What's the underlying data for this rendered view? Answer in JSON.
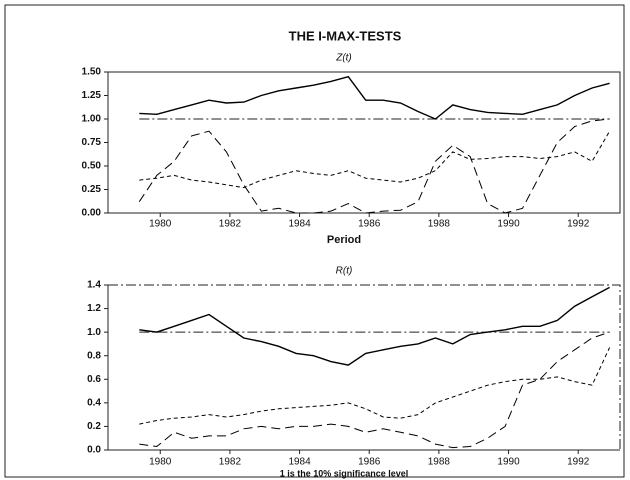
{
  "title": "THE I-MAX-TESTS",
  "chart_data": [
    {
      "type": "line",
      "title": "Z(t)",
      "xlabel": "Period",
      "x": [
        1979.4,
        1979.9,
        1980.4,
        1980.9,
        1981.4,
        1981.9,
        1982.4,
        1982.9,
        1983.4,
        1983.9,
        1984.4,
        1984.9,
        1985.4,
        1985.9,
        1986.4,
        1986.9,
        1987.4,
        1987.9,
        1988.4,
        1988.9,
        1989.4,
        1989.9,
        1990.4,
        1990.9,
        1991.4,
        1991.9,
        1992.4,
        1992.9
      ],
      "series": [
        {
          "color": "#000000",
          "style": "solid",
          "values": [
            1.06,
            1.05,
            1.1,
            1.15,
            1.2,
            1.17,
            1.18,
            1.25,
            1.3,
            1.33,
            1.36,
            1.4,
            1.45,
            1.2,
            1.2,
            1.17,
            1.08,
            1.0,
            1.15,
            1.1,
            1.07,
            1.06,
            1.05,
            1.1,
            1.15,
            1.25,
            1.33,
            1.38
          ]
        },
        {
          "color": "#000000",
          "style": "longdash",
          "values": [
            0.12,
            0.4,
            0.55,
            0.82,
            0.87,
            0.65,
            0.3,
            0.02,
            0.05,
            0.0,
            0.0,
            0.02,
            0.1,
            0.0,
            0.02,
            0.03,
            0.12,
            0.55,
            0.72,
            0.6,
            0.1,
            0.0,
            0.05,
            0.4,
            0.75,
            0.92,
            0.98,
            1.0
          ]
        },
        {
          "color": "#000000",
          "style": "shortdash",
          "values": [
            0.35,
            0.37,
            0.4,
            0.35,
            0.33,
            0.3,
            0.27,
            0.35,
            0.4,
            0.45,
            0.42,
            0.4,
            0.45,
            0.37,
            0.35,
            0.33,
            0.37,
            0.45,
            0.65,
            0.57,
            0.58,
            0.6,
            0.6,
            0.58,
            0.6,
            0.65,
            0.55,
            0.87
          ]
        }
      ],
      "reference_line": 1.0,
      "xlim": [
        1978.5,
        1993.2
      ],
      "xticks": [
        1980,
        1982,
        1984,
        1986,
        1988,
        1990,
        1992
      ],
      "ylim": [
        0,
        1.5
      ],
      "yticks": [
        {
          "value": 0,
          "label": "0.00"
        },
        {
          "value": 0.25,
          "label": "0.25"
        },
        {
          "value": 0.5,
          "label": "0.50"
        },
        {
          "value": 0.75,
          "label": "0.75"
        },
        {
          "value": 1.0,
          "label": "1.00"
        },
        {
          "value": 1.25,
          "label": "1.25"
        },
        {
          "value": 1.5,
          "label": "1.50"
        }
      ]
    },
    {
      "type": "line",
      "title": "R(t)",
      "note": "1 is the 10% significance level",
      "x": [
        1979.4,
        1979.9,
        1980.4,
        1980.9,
        1981.4,
        1981.9,
        1982.4,
        1982.9,
        1983.4,
        1983.9,
        1984.4,
        1984.9,
        1985.4,
        1985.9,
        1986.4,
        1986.9,
        1987.4,
        1987.9,
        1988.4,
        1988.9,
        1989.4,
        1989.9,
        1990.4,
        1990.9,
        1991.4,
        1991.9,
        1992.4,
        1992.9
      ],
      "series": [
        {
          "color": "#000000",
          "style": "solid",
          "values": [
            1.02,
            1.0,
            1.05,
            1.1,
            1.15,
            1.05,
            0.95,
            0.92,
            0.88,
            0.82,
            0.8,
            0.75,
            0.72,
            0.82,
            0.85,
            0.88,
            0.9,
            0.95,
            0.9,
            0.98,
            1.0,
            1.02,
            1.05,
            1.05,
            1.1,
            1.22,
            1.3,
            1.38
          ]
        },
        {
          "color": "#000000",
          "style": "longdash",
          "values": [
            0.05,
            0.03,
            0.15,
            0.1,
            0.12,
            0.12,
            0.18,
            0.2,
            0.18,
            0.2,
            0.2,
            0.22,
            0.2,
            0.15,
            0.18,
            0.15,
            0.12,
            0.05,
            0.02,
            0.03,
            0.1,
            0.2,
            0.55,
            0.6,
            0.75,
            0.85,
            0.95,
            1.0
          ]
        },
        {
          "color": "#000000",
          "style": "shortdash",
          "values": [
            0.22,
            0.25,
            0.27,
            0.28,
            0.3,
            0.28,
            0.3,
            0.33,
            0.35,
            0.36,
            0.37,
            0.38,
            0.4,
            0.35,
            0.28,
            0.27,
            0.3,
            0.4,
            0.45,
            0.5,
            0.55,
            0.58,
            0.6,
            0.6,
            0.62,
            0.58,
            0.55,
            0.87
          ]
        }
      ],
      "reference_line": 1.0,
      "xlim": [
        1978.5,
        1993.2
      ],
      "xticks": [
        1980,
        1982,
        1984,
        1986,
        1988,
        1990,
        1992
      ],
      "ylim": [
        0,
        1.4
      ],
      "yticks": [
        {
          "value": 0,
          "label": "0.0"
        },
        0.2,
        0.4,
        0.6,
        0.8,
        {
          "value": 1.0,
          "label": "1.0"
        },
        1.2,
        1.4
      ]
    }
  ]
}
